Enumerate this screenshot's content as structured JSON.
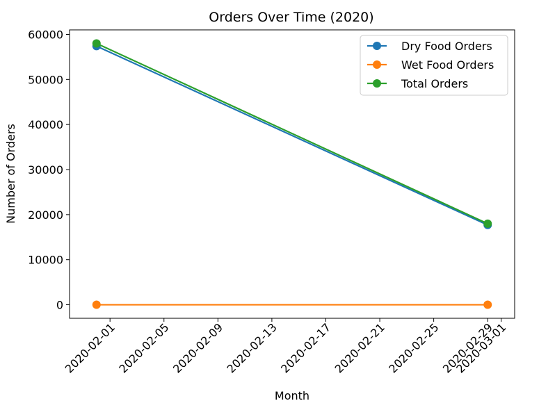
{
  "chart_data": {
    "type": "line",
    "title": "Orders Over Time (2020)",
    "xlabel": "Month",
    "ylabel": "Number of Orders",
    "x": [
      "2020-01-31",
      "2020-02-29"
    ],
    "xlim": [
      "2020-01-29",
      "2020-03-02"
    ],
    "ylim": [
      -3000,
      61000
    ],
    "x_ticks": [
      "2020-02-01",
      "2020-02-05",
      "2020-02-09",
      "2020-02-13",
      "2020-02-17",
      "2020-02-21",
      "2020-02-25",
      "2020-02-29",
      "2020-03-01"
    ],
    "y_ticks": [
      0,
      10000,
      20000,
      30000,
      40000,
      50000,
      60000
    ],
    "grid": false,
    "legend_position": "top-right",
    "series": [
      {
        "name": "Dry Food Orders",
        "color": "#1f77b4",
        "values": [
          57400,
          17700
        ]
      },
      {
        "name": "Wet Food Orders",
        "color": "#ff7f0e",
        "values": [
          0,
          0
        ]
      },
      {
        "name": "Total Orders",
        "color": "#2ca02c",
        "values": [
          58000,
          18000
        ]
      }
    ]
  }
}
